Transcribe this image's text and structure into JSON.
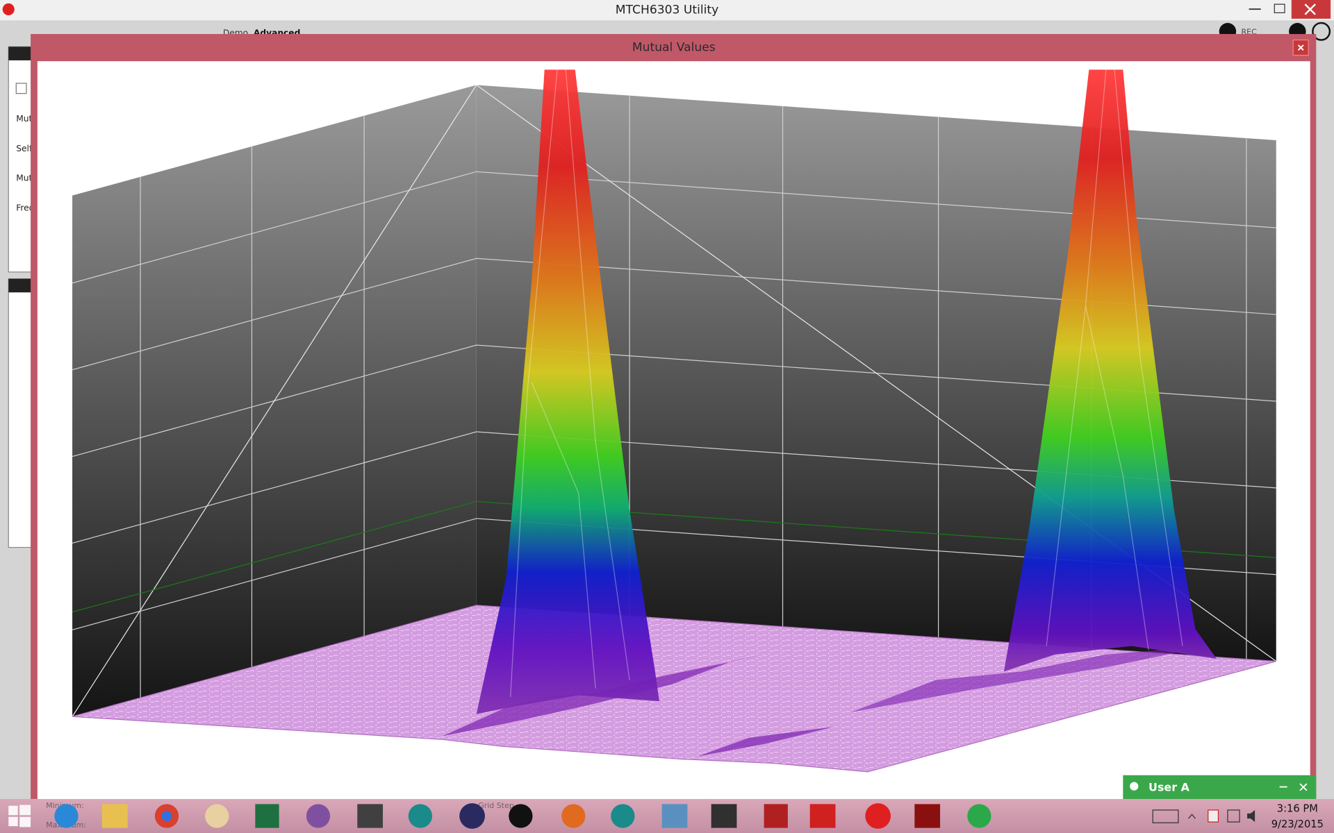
{
  "window": {
    "title": "MTCH6303 Utility"
  },
  "tabs": [
    "Demo",
    "Advanced"
  ],
  "side_labels": [
    "Mut",
    "Self",
    "Mut",
    "Freq"
  ],
  "dialog": {
    "title": "Mutual Values"
  },
  "bottom_fields": [
    "Minimum:",
    "Maximum:",
    "Grid Step"
  ],
  "toolbar": {
    "rec": "REC"
  },
  "notification": {
    "user": "User A"
  },
  "taskbar": {
    "time": "3:16 PM",
    "date": "9/23/2015"
  }
}
